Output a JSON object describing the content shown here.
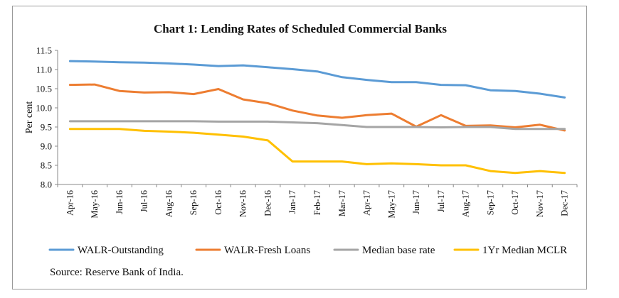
{
  "chart_data": {
    "type": "line",
    "title": "Chart 1: Lending Rates of Scheduled Commercial Banks",
    "xlabel": "",
    "ylabel": "Per cent",
    "ylim": [
      8.0,
      11.5
    ],
    "yticks": [
      "8.0",
      "8.5",
      "9.0",
      "9.5",
      "10.0",
      "10.5",
      "11.0",
      "11.5"
    ],
    "grid": false,
    "legend": "bottom",
    "categories": [
      "Apr-16",
      "May-16",
      "Jun-16",
      "Jul-16",
      "Aug-16",
      "Sep-16",
      "Oct-16",
      "Nov-16",
      "Dec-16",
      "Jan-17",
      "Feb-17",
      "Mar-17",
      "Apr-17",
      "May-17",
      "Jun-17",
      "Jul-17",
      "Aug-17",
      "Sep-17",
      "Oct-17",
      "Nov-17",
      "Dec-17"
    ],
    "series": [
      {
        "name": "WALR-Outstanding",
        "color": "#5b9bd5",
        "values": [
          11.22,
          11.21,
          11.19,
          11.18,
          11.16,
          11.13,
          11.09,
          11.11,
          11.06,
          11.01,
          10.95,
          10.8,
          10.73,
          10.67,
          10.67,
          10.6,
          10.59,
          10.46,
          10.44,
          10.37,
          10.27
        ]
      },
      {
        "name": "WALR-Fresh Loans",
        "color": "#ed7d31",
        "values": [
          10.6,
          10.61,
          10.44,
          10.4,
          10.41,
          10.36,
          10.49,
          10.22,
          10.12,
          9.93,
          9.8,
          9.74,
          9.81,
          9.85,
          9.51,
          9.81,
          9.53,
          9.54,
          9.49,
          9.56,
          9.41
        ]
      },
      {
        "name": "Median base rate",
        "color": "#a5a5a5",
        "values": [
          9.65,
          9.65,
          9.65,
          9.65,
          9.65,
          9.65,
          9.64,
          9.64,
          9.64,
          9.62,
          9.6,
          9.55,
          9.5,
          9.5,
          9.5,
          9.49,
          9.5,
          9.5,
          9.45,
          9.45,
          9.45
        ]
      },
      {
        "name": "1Yr Median MCLR",
        "color": "#ffc000",
        "values": [
          9.45,
          9.45,
          9.45,
          9.4,
          9.38,
          9.35,
          9.3,
          9.25,
          9.15,
          8.6,
          8.6,
          8.6,
          8.53,
          8.55,
          8.53,
          8.5,
          8.5,
          8.35,
          8.3,
          8.35,
          8.3
        ]
      }
    ]
  },
  "source": "Source: Reserve Bank of India."
}
